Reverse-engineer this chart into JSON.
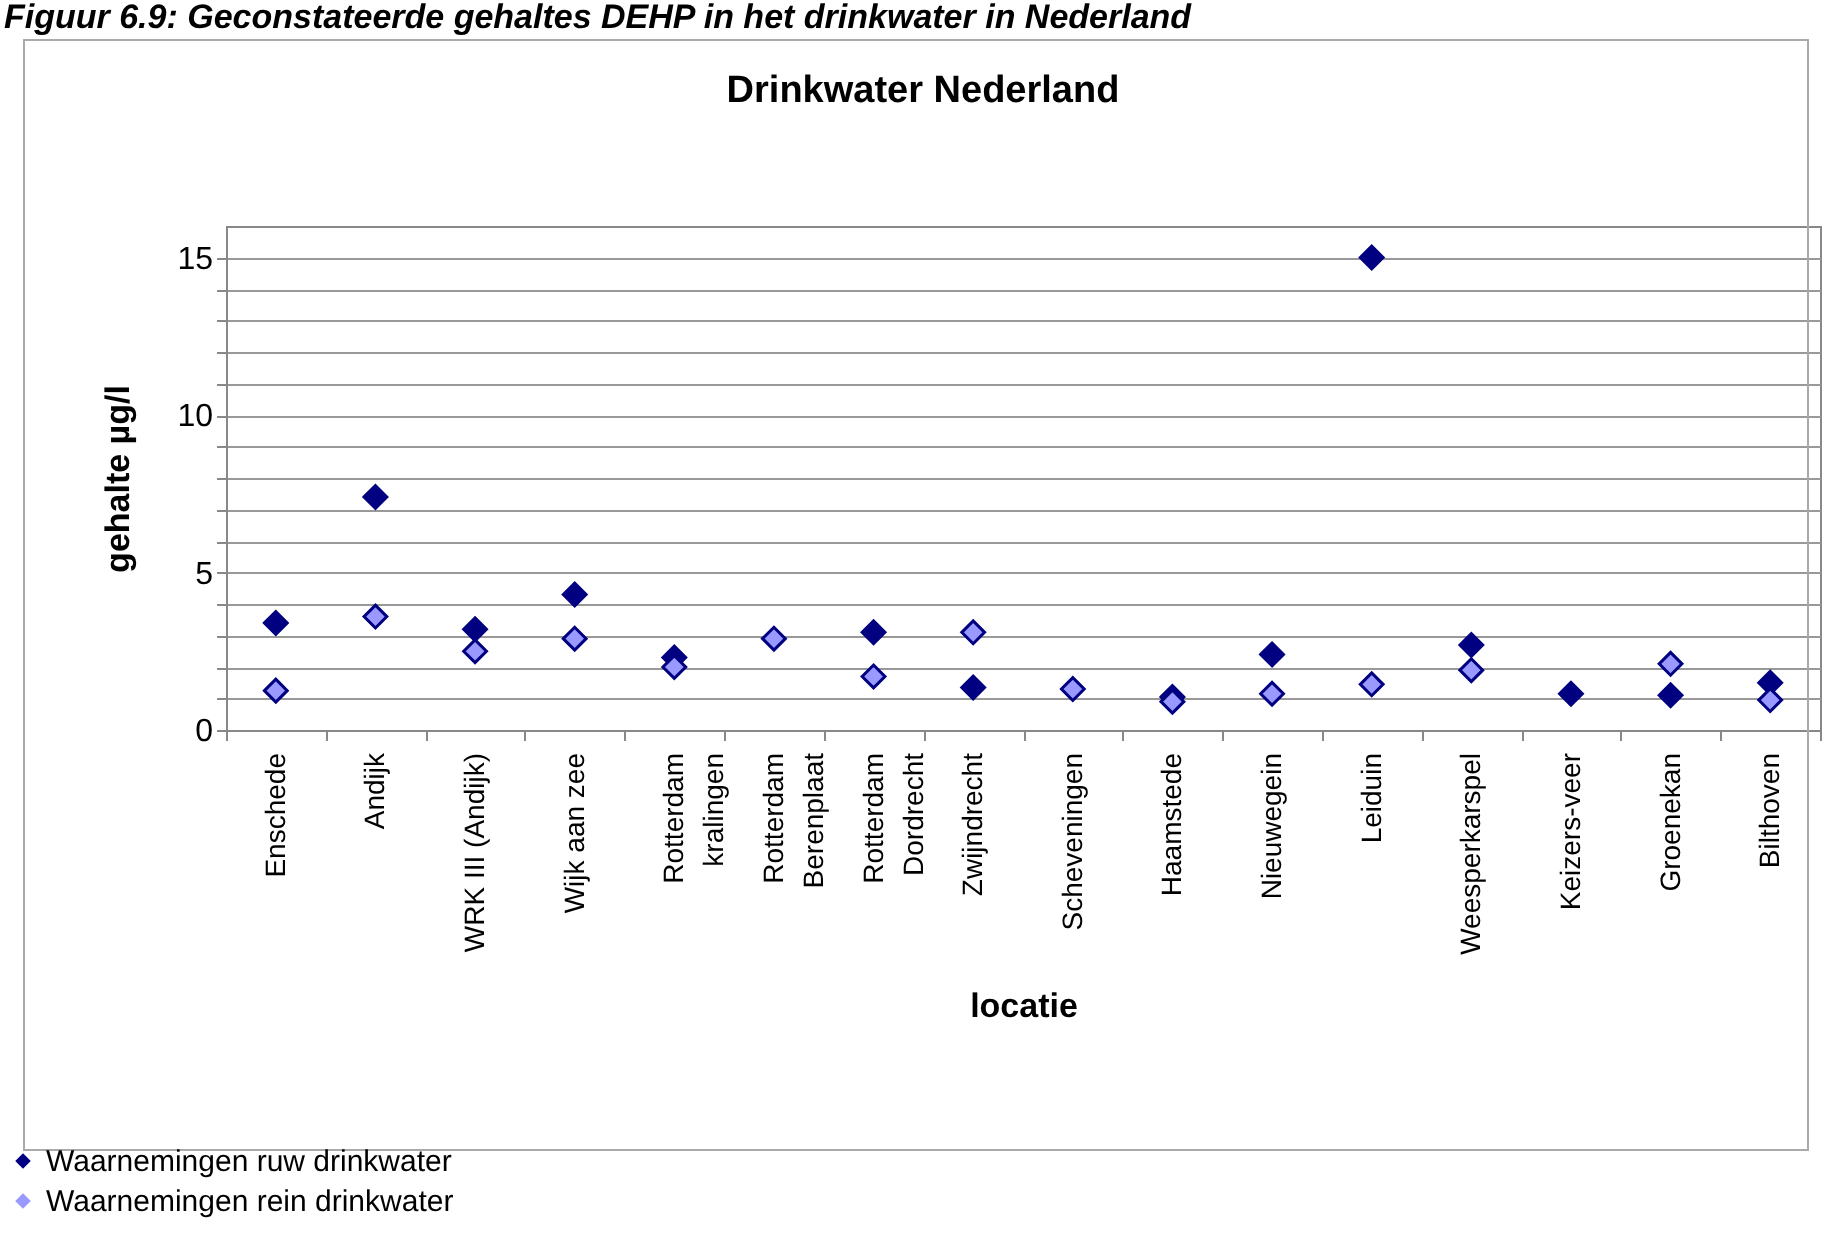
{
  "chart_data": {
    "type": "scatter",
    "title": "Drinkwater Nederland",
    "xlabel": "locatie",
    "ylabel": "gehalte µg/l",
    "annotations": [
      "Figuur 6.9: Geconstateerde gehaltes DEHP in het drinkwater in Nederland"
    ],
    "categories": [
      "Enschede",
      "Andijk",
      "WRK III (Andijk)",
      "Wijk aan zee",
      "Rotterdam\nkralingen",
      "Rotterdam\nBerenplaat",
      "Rotterdam\nDordrecht",
      "Zwijndrecht",
      "Scheveningen",
      "Haamstede",
      "Nieuwegein",
      "Leiduin",
      "Weesperkarspel",
      "Keizers-veer",
      "Groenekan",
      "Bilthoven"
    ],
    "series": [
      {
        "name": "Waarnemingen ruw drinkwater",
        "color": "#000080",
        "values": [
          3.4,
          7.4,
          3.2,
          4.3,
          2.3,
          null,
          3.1,
          1.35,
          null,
          1.05,
          2.4,
          15.0,
          2.7,
          1.15,
          1.1,
          1.5
        ]
      },
      {
        "name": "Waarnemingen rein drinkwater",
        "color": "#9999ff",
        "values": [
          1.25,
          3.6,
          2.5,
          2.9,
          2.0,
          2.9,
          1.7,
          3.1,
          1.3,
          0.9,
          1.15,
          1.45,
          1.9,
          null,
          2.1,
          0.95
        ]
      }
    ],
    "ylim": [
      0,
      16
    ],
    "yticks": [
      0,
      {
        "value": 1,
        "label": null
      },
      {
        "value": 2,
        "label": null
      },
      {
        "value": 3,
        "label": null
      },
      {
        "value": 4,
        "label": null
      },
      5,
      {
        "value": 6,
        "label": null
      },
      {
        "value": 7,
        "label": null
      },
      {
        "value": 8,
        "label": null
      },
      {
        "value": 9,
        "label": null
      },
      10,
      {
        "value": 11,
        "label": null
      },
      {
        "value": 12,
        "label": null
      },
      {
        "value": 13,
        "label": null
      },
      {
        "value": 14,
        "label": null
      },
      15
    ],
    "grid": "y",
    "legend": "bottom",
    "marker": "diamond"
  }
}
